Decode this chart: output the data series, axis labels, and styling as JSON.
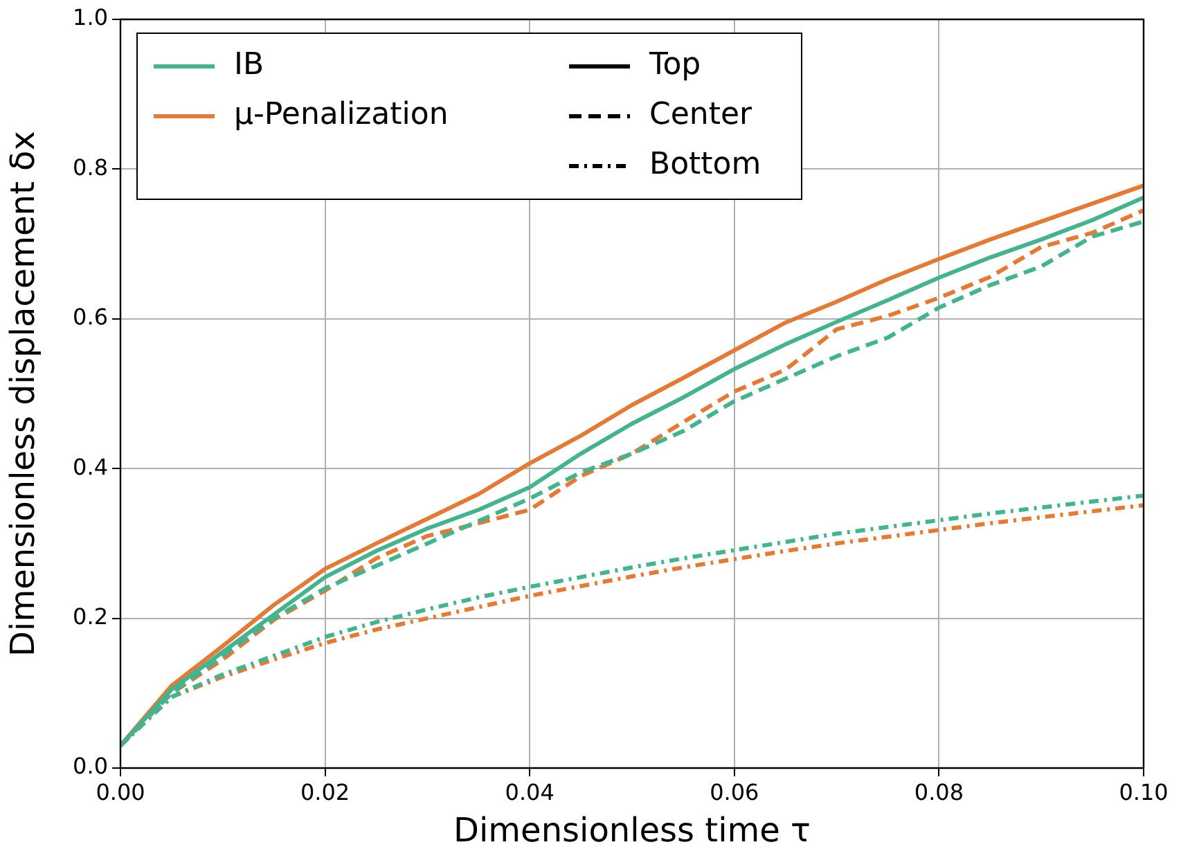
{
  "chart_data": {
    "type": "line",
    "xlabel": "Dimensionless time τ",
    "ylabel": "Dimensionless displacement δx",
    "x": [
      0,
      0.005,
      0.01,
      0.015,
      0.02,
      0.025,
      0.03,
      0.035,
      0.04,
      0.045,
      0.05,
      0.055,
      0.06,
      0.065,
      0.07,
      0.075,
      0.08,
      0.085,
      0.09,
      0.095,
      0.1
    ],
    "series": [
      {
        "color": "#47b38e",
        "line_style": "solid",
        "values": [
          0.03,
          0.105,
          0.155,
          0.205,
          0.255,
          0.29,
          0.32,
          0.345,
          0.375,
          0.42,
          0.46,
          0.495,
          0.533,
          0.566,
          0.596,
          0.625,
          0.655,
          0.682,
          0.706,
          0.732,
          0.762
        ]
      },
      {
        "color": "#e07b39",
        "line_style": "solid",
        "values": [
          0.03,
          0.11,
          0.163,
          0.218,
          0.266,
          0.3,
          0.333,
          0.366,
          0.407,
          0.444,
          0.485,
          0.521,
          0.558,
          0.595,
          0.623,
          0.653,
          0.68,
          0.706,
          0.73,
          0.754,
          0.778
        ]
      },
      {
        "color": "#47b38e",
        "line_style": "dashed",
        "values": [
          0.03,
          0.1,
          0.15,
          0.2,
          0.24,
          0.27,
          0.3,
          0.33,
          0.36,
          0.395,
          0.42,
          0.45,
          0.49,
          0.52,
          0.55,
          0.575,
          0.615,
          0.645,
          0.67,
          0.71,
          0.73
        ]
      },
      {
        "color": "#e07b39",
        "line_style": "dashed",
        "values": [
          0.03,
          0.1,
          0.145,
          0.198,
          0.237,
          0.28,
          0.31,
          0.327,
          0.345,
          0.39,
          0.42,
          0.462,
          0.503,
          0.532,
          0.586,
          0.604,
          0.628,
          0.656,
          0.696,
          0.715,
          0.745
        ]
      },
      {
        "color": "#47b38e",
        "line_style": "dotted",
        "values": [
          0.03,
          0.095,
          0.125,
          0.15,
          0.175,
          0.195,
          0.212,
          0.228,
          0.242,
          0.255,
          0.268,
          0.28,
          0.291,
          0.302,
          0.313,
          0.322,
          0.331,
          0.34,
          0.348,
          0.356,
          0.364
        ]
      },
      {
        "color": "#e07b39",
        "line_style": "dotted",
        "values": [
          0.03,
          0.095,
          0.122,
          0.145,
          0.167,
          0.185,
          0.2,
          0.215,
          0.23,
          0.243,
          0.256,
          0.268,
          0.279,
          0.29,
          0.3,
          0.309,
          0.318,
          0.327,
          0.335,
          0.343,
          0.351
        ]
      },
      {
        "name": "IB",
        "color": "#47b38e",
        "line_style": "solid",
        "values": [
          null,
          null,
          null,
          null,
          null,
          null,
          null,
          null,
          null,
          null,
          null,
          null,
          null,
          null,
          null,
          null,
          null,
          null,
          null,
          null,
          null
        ]
      },
      {
        "name": "μ-Penalization",
        "color": "#e07b39",
        "line_style": "solid",
        "values": [
          null,
          null,
          null,
          null,
          null,
          null,
          null,
          null,
          null,
          null,
          null,
          null,
          null,
          null,
          null,
          null,
          null,
          null,
          null,
          null,
          null
        ]
      },
      {
        "name": "Top",
        "color": "#000000",
        "line_style": "solid",
        "values": [
          null,
          null,
          null,
          null,
          null,
          null,
          null,
          null,
          null,
          null,
          null,
          null,
          null,
          null,
          null,
          null,
          null,
          null,
          null,
          null,
          null
        ]
      },
      {
        "name": "Center",
        "color": "#000000",
        "line_style": "dashed",
        "values": [
          null,
          null,
          null,
          null,
          null,
          null,
          null,
          null,
          null,
          null,
          null,
          null,
          null,
          null,
          null,
          null,
          null,
          null,
          null,
          null,
          null
        ]
      },
      {
        "name": "Bottom",
        "color": "#000000",
        "line_style": "dotted",
        "values": [
          null,
          null,
          null,
          null,
          null,
          null,
          null,
          null,
          null,
          null,
          null,
          null,
          null,
          null,
          null,
          null,
          null,
          null,
          null,
          null,
          null
        ]
      }
    ],
    "xlim": [
      0,
      0.1
    ],
    "xticks": [
      {
        "value": 0,
        "label": "0.00"
      },
      {
        "value": 0.02,
        "label": "0.02"
      },
      {
        "value": 0.04,
        "label": "0.04"
      },
      {
        "value": 0.06,
        "label": "0.06"
      },
      {
        "value": 0.08,
        "label": "0.08"
      },
      {
        "value": 0.1,
        "label": "0.10"
      }
    ],
    "ylim": [
      0,
      1
    ],
    "yticks": [
      {
        "value": 0,
        "label": "0.0"
      },
      {
        "value": 0.2,
        "label": "0.2"
      },
      {
        "value": 0.4,
        "label": "0.4"
      },
      {
        "value": 0.6,
        "label": "0.6"
      },
      {
        "value": 0.8,
        "label": "0.8"
      },
      {
        "value": 1,
        "label": "1.0"
      }
    ],
    "grid": true,
    "legend": "top left",
    "marker": "none"
  }
}
